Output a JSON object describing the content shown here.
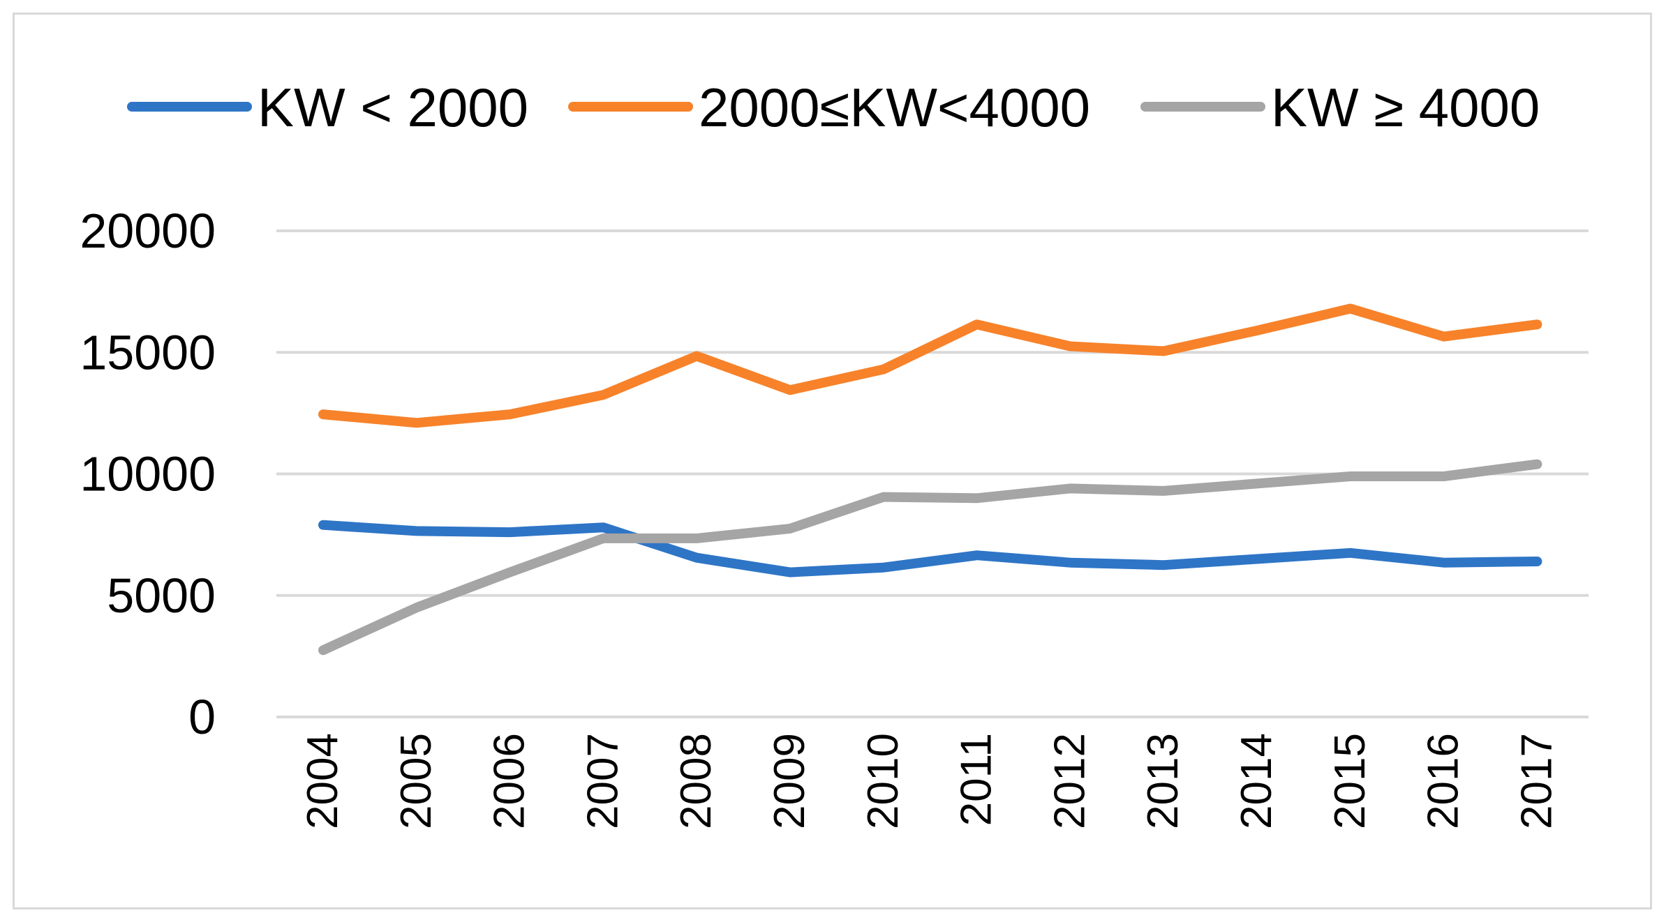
{
  "chart_data": {
    "type": "line",
    "title": "",
    "xlabel": "",
    "ylabel": "",
    "categories": [
      "2004",
      "2005",
      "2006",
      "2007",
      "2008",
      "2009",
      "2010",
      "2011",
      "2012",
      "2013",
      "2014",
      "2015",
      "2016",
      "2017"
    ],
    "ylim": [
      0,
      20000
    ],
    "yticks": [
      0,
      5000,
      10000,
      15000,
      20000
    ],
    "ytick_labels": [
      "0",
      "5000",
      "10000",
      "15000",
      "20000"
    ],
    "grid": true,
    "legend_position": "top",
    "series": [
      {
        "name": "KW < 2000",
        "color": "#2e75c6",
        "values": [
          7900,
          7650,
          7600,
          7800,
          6550,
          5950,
          6150,
          6650,
          6350,
          6250,
          6500,
          6750,
          6350,
          6400
        ]
      },
      {
        "name": "2000≤KW<4000",
        "color": "#f7822a",
        "values": [
          12450,
          12100,
          12450,
          13250,
          14850,
          13450,
          14300,
          16150,
          15250,
          15050,
          15900,
          16800,
          15650,
          16150
        ]
      },
      {
        "name": "KW ≥ 4000",
        "color": "#a5a5a5",
        "values": [
          2750,
          4500,
          5950,
          7350,
          7350,
          7750,
          9050,
          9000,
          9400,
          9300,
          9600,
          9900,
          9900,
          10400
        ]
      }
    ]
  }
}
